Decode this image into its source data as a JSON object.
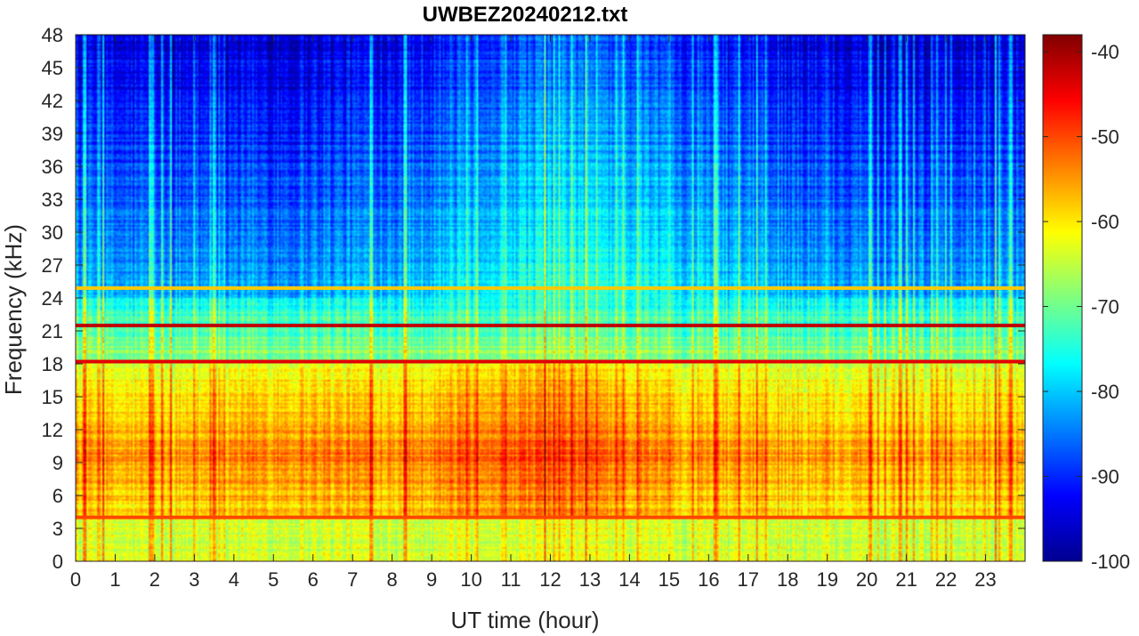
{
  "chart_data": {
    "type": "heatmap",
    "title": "UWBEZ20240212.txt",
    "xlabel": "UT time (hour)",
    "ylabel": "Frequency (kHz)",
    "xlim": [
      0,
      24
    ],
    "ylim": [
      0,
      48
    ],
    "x_ticks": [
      "0",
      "1",
      "2",
      "3",
      "4",
      "5",
      "6",
      "7",
      "8",
      "9",
      "10",
      "11",
      "12",
      "13",
      "14",
      "15",
      "16",
      "17",
      "18",
      "19",
      "20",
      "21",
      "22",
      "23"
    ],
    "y_ticks": [
      "0",
      "3",
      "6",
      "9",
      "12",
      "15",
      "18",
      "21",
      "24",
      "27",
      "30",
      "33",
      "36",
      "39",
      "42",
      "45",
      "48"
    ],
    "colorbar": {
      "range": [
        -100,
        -38
      ],
      "ticks": [
        "-40",
        "-50",
        "-60",
        "-70",
        "-80",
        "-90",
        "-100"
      ],
      "colormap": "jet"
    },
    "features": [
      {
        "freq_khz": 21.5,
        "level_db": -42,
        "desc": "strong continuous transmitter line"
      },
      {
        "freq_khz": 18.2,
        "level_db": -44,
        "desc": "strong continuous transmitter line"
      },
      {
        "freq_khz": 24.9,
        "level_db": -58,
        "desc": "narrowband line"
      },
      {
        "freq_khz": 4.0,
        "level_db": -50,
        "desc": "narrowband line"
      },
      {
        "band_khz": [
          4,
          17
        ],
        "time_h": [
          0,
          24
        ],
        "level_db": -52,
        "desc": "broadband sferics, peak near 09-14 UT"
      }
    ]
  }
}
